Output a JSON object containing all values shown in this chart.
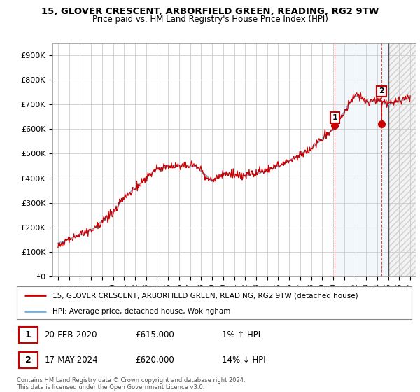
{
  "title": "15, GLOVER CRESCENT, ARBORFIELD GREEN, READING, RG2 9TW",
  "subtitle": "Price paid vs. HM Land Registry's House Price Index (HPI)",
  "ylim": [
    0,
    950000
  ],
  "yticks": [
    0,
    100000,
    200000,
    300000,
    400000,
    500000,
    600000,
    700000,
    800000,
    900000
  ],
  "ytick_labels": [
    "£0",
    "£100K",
    "£200K",
    "£300K",
    "£400K",
    "£500K",
    "£600K",
    "£700K",
    "£800K",
    "£900K"
  ],
  "hpi_color": "#7aaed6",
  "price_color": "#cc0000",
  "annotation1_date": "20-FEB-2020",
  "annotation1_price": "£615,000",
  "annotation1_hpi": "1% ↑ HPI",
  "annotation2_date": "17-MAY-2024",
  "annotation2_price": "£620,000",
  "annotation2_hpi": "14% ↓ HPI",
  "legend_line1": "15, GLOVER CRESCENT, ARBORFIELD GREEN, READING, RG2 9TW (detached house)",
  "legend_line2": "HPI: Average price, detached house, Wokingham",
  "footnote": "Contains HM Land Registry data © Crown copyright and database right 2024.\nThis data is licensed under the Open Government Licence v3.0.",
  "background_color": "#ffffff",
  "grid_color": "#cccccc",
  "pt1_x": 2020.14,
  "pt1_y": 615000,
  "pt2_x": 2024.38,
  "pt2_y": 620000,
  "shade1_start": 2020.14,
  "shade2_start": 2025.0,
  "xmin": 1994.5,
  "xmax": 2027.5
}
